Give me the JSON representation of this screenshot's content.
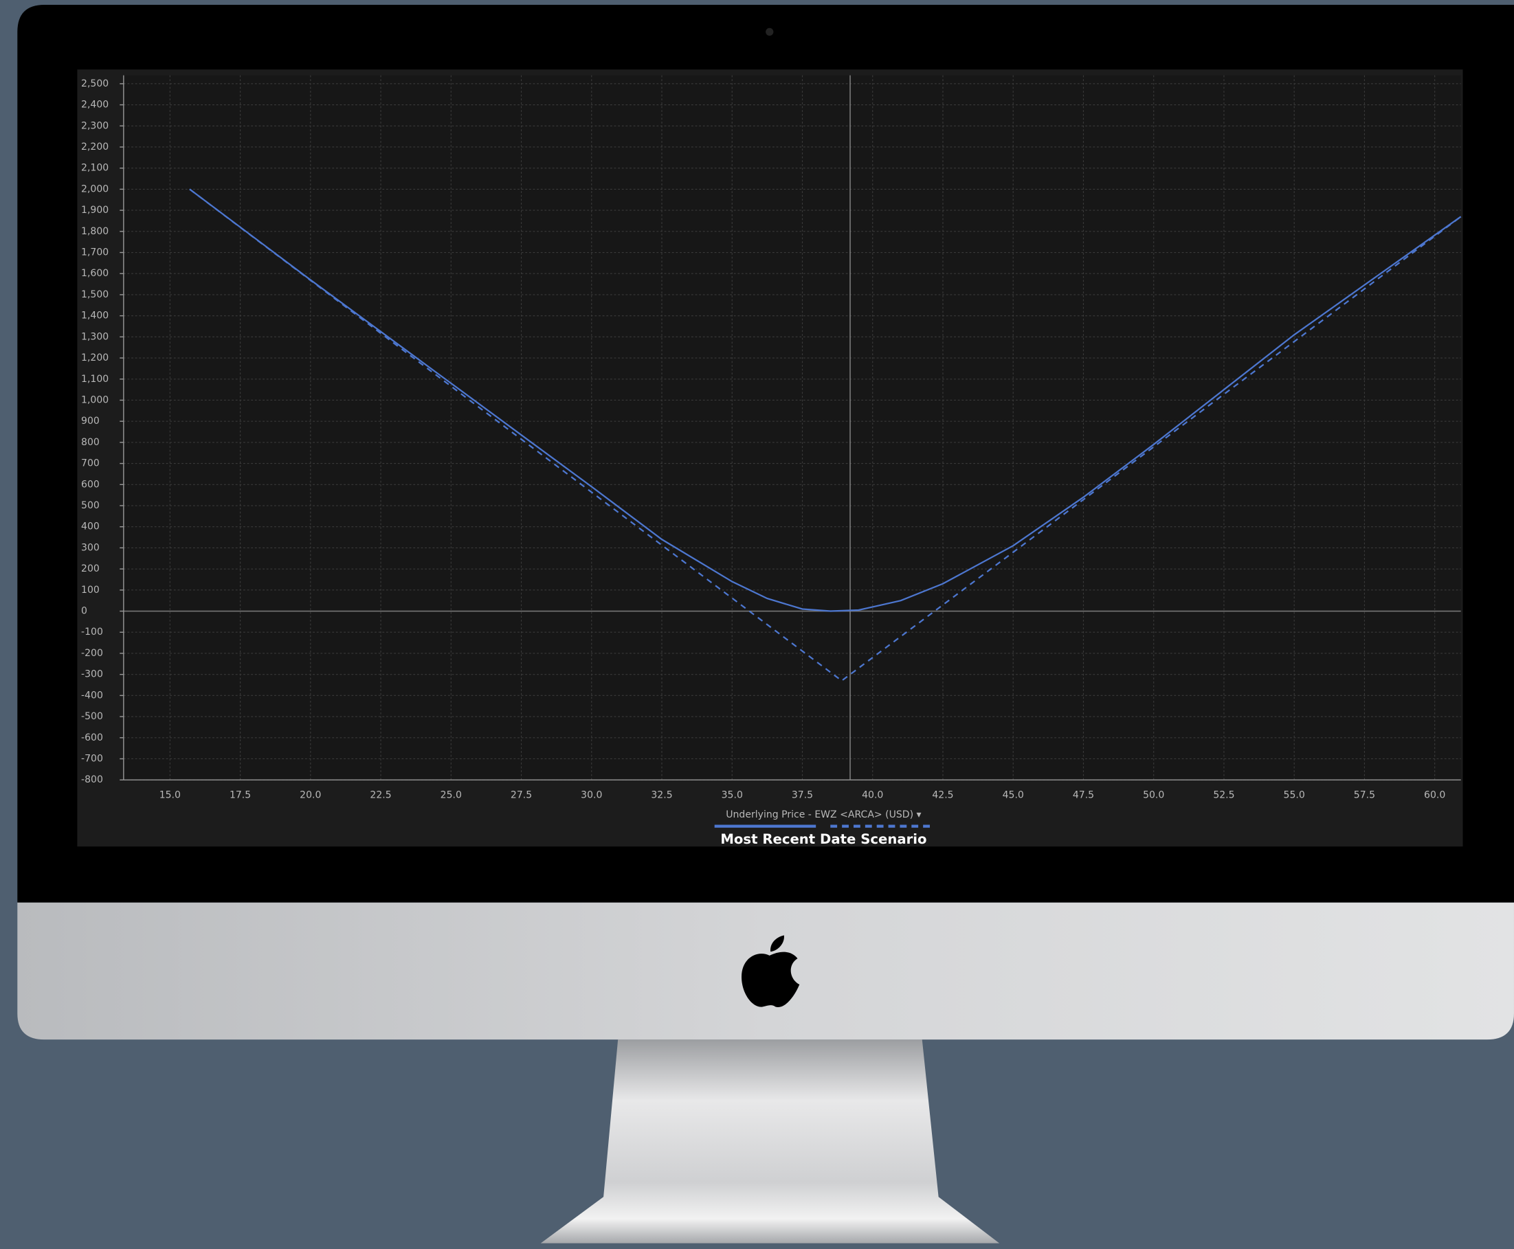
{
  "chart_data": {
    "type": "line",
    "x_label": "Underlying Price - EWZ <ARCA> (USD) ▾",
    "legend_title": "Most Recent Date Scenario",
    "xlim": [
      13.35,
      60.93
    ],
    "ylim": [
      -800,
      2540
    ],
    "marker_x": 39.2,
    "grid": true,
    "xticks": [
      {
        "value": 15,
        "label": "15.0"
      },
      {
        "value": 17.5,
        "label": "17.5"
      },
      {
        "value": 20,
        "label": "20.0"
      },
      {
        "value": 22.5,
        "label": "22.5"
      },
      {
        "value": 25,
        "label": "25.0"
      },
      {
        "value": 27.5,
        "label": "27.5"
      },
      {
        "value": 30,
        "label": "30.0"
      },
      {
        "value": 32.5,
        "label": "32.5"
      },
      {
        "value": 35,
        "label": "35.0"
      },
      {
        "value": 37.5,
        "label": "37.5"
      },
      {
        "value": 40,
        "label": "40.0"
      },
      {
        "value": 42.5,
        "label": "42.5"
      },
      {
        "value": 45,
        "label": "45.0"
      },
      {
        "value": 47.5,
        "label": "47.5"
      },
      {
        "value": 50,
        "label": "50.0"
      },
      {
        "value": 52.5,
        "label": "52.5"
      },
      {
        "value": 55,
        "label": "55.0"
      },
      {
        "value": 57.5,
        "label": "57.5"
      },
      {
        "value": 60,
        "label": "60.0"
      }
    ],
    "yticks": [
      -800,
      -700,
      -600,
      -500,
      -400,
      -300,
      -200,
      -100,
      0,
      100,
      200,
      300,
      400,
      500,
      600,
      700,
      800,
      900,
      {
        "value": 1000,
        "label": "1,000"
      },
      {
        "value": 1100,
        "label": "1,100"
      },
      {
        "value": 1200,
        "label": "1,200"
      },
      {
        "value": 1300,
        "label": "1,300"
      },
      {
        "value": 1400,
        "label": "1,400"
      },
      {
        "value": 1500,
        "label": "1,500"
      },
      {
        "value": 1600,
        "label": "1,600"
      },
      {
        "value": 1700,
        "label": "1,700"
      },
      {
        "value": 1800,
        "label": "1,800"
      },
      {
        "value": 1900,
        "label": "1,900"
      },
      {
        "value": 2000,
        "label": "2,000"
      },
      {
        "value": 2100,
        "label": "2,100"
      },
      {
        "value": 2200,
        "label": "2,200"
      },
      {
        "value": 2300,
        "label": "2,300"
      },
      {
        "value": 2400,
        "label": "2,400"
      },
      {
        "value": 2500,
        "label": "2,500"
      }
    ],
    "series": [
      {
        "color": "#4d77d0",
        "dash": false,
        "x": [
          15.7,
          20,
          25,
          30,
          32.5,
          35,
          36.25,
          37.5,
          38.5,
          39.5,
          41,
          42.5,
          45,
          47.5,
          50,
          55,
          60.93
        ],
        "values": [
          2000,
          1570,
          1080,
          590,
          340,
          140,
          60,
          10,
          0,
          5,
          50,
          130,
          310,
          540,
          790,
          1310,
          1870
        ]
      },
      {
        "color": "#4d77d0",
        "dash": true,
        "x": [
          15.7,
          38.9,
          60.93
        ],
        "values": [
          2000,
          -330,
          1870
        ]
      }
    ]
  }
}
